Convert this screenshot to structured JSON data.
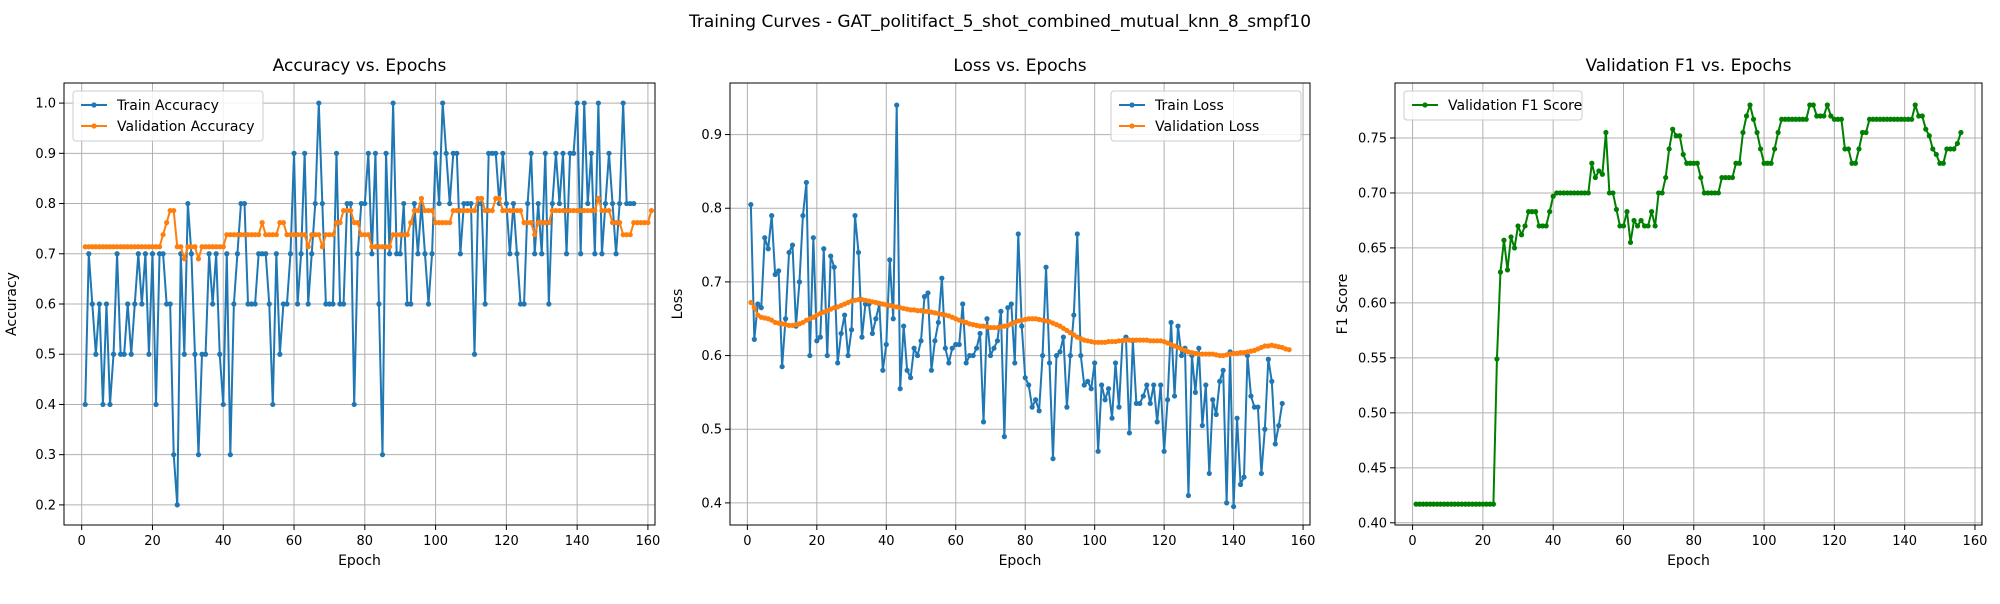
{
  "suptitle": "Training Curves - GAT_politifact_5_shot_combined_mutual_knn_8_smpf10",
  "chart_data": [
    {
      "type": "line",
      "title": "Accuracy vs. Epochs",
      "xlabel": "Epoch",
      "ylabel": "Accuracy",
      "xlim": [
        -5,
        162
      ],
      "ylim": [
        0.16,
        1.04
      ],
      "xticks": [
        0,
        20,
        40,
        60,
        80,
        100,
        120,
        140,
        160
      ],
      "yticks": [
        0.2,
        0.3,
        0.4,
        0.5,
        0.6,
        0.7,
        0.8,
        0.9,
        1.0
      ],
      "ytick_labels": [
        "0.2",
        "0.3",
        "0.4",
        "0.5",
        "0.6",
        "0.7",
        "0.8",
        "0.9",
        "1.0"
      ],
      "grid": true,
      "legend": "upper left",
      "series": [
        {
          "name": "Train Accuracy",
          "color": "#1f77b4",
          "values": [
            0.4,
            0.7,
            0.6,
            0.5,
            0.6,
            0.4,
            0.6,
            0.4,
            0.5,
            0.7,
            0.5,
            0.5,
            0.6,
            0.5,
            0.6,
            0.7,
            0.6,
            0.7,
            0.5,
            0.7,
            0.4,
            0.7,
            0.7,
            0.6,
            0.6,
            0.3,
            0.2,
            0.7,
            0.5,
            0.8,
            0.7,
            0.5,
            0.3,
            0.5,
            0.5,
            0.7,
            0.6,
            0.7,
            0.5,
            0.4,
            0.7,
            0.3,
            0.6,
            0.7,
            0.8,
            0.8,
            0.6,
            0.6,
            0.6,
            0.7,
            0.7,
            0.7,
            0.6,
            0.4,
            0.7,
            0.5,
            0.6,
            0.6,
            0.7,
            0.9,
            0.6,
            0.7,
            0.9,
            0.6,
            0.7,
            0.8,
            1.0,
            0.8,
            0.6,
            0.6,
            0.6,
            0.9,
            0.6,
            0.6,
            0.8,
            0.8,
            0.4,
            0.7,
            0.8,
            0.8,
            0.9,
            0.7,
            0.9,
            0.6,
            0.3,
            0.9,
            0.7,
            1.0,
            0.7,
            0.7,
            0.8,
            0.6,
            0.6,
            0.8,
            0.7,
            0.8,
            0.7,
            0.6,
            0.7,
            0.9,
            0.8,
            1.0,
            0.9,
            0.8,
            0.9,
            0.9,
            0.7,
            0.8,
            0.8,
            0.8,
            0.5,
            0.8,
            0.8,
            0.6,
            0.9,
            0.9,
            0.9,
            0.8,
            0.9,
            0.8,
            0.7,
            0.8,
            0.7,
            0.6,
            0.6,
            0.8,
            0.9,
            0.7,
            0.8,
            0.7,
            0.9,
            0.6,
            0.8,
            0.9,
            0.8,
            0.9,
            0.7,
            0.9,
            0.9,
            1.0,
            0.7,
            1.0,
            0.8,
            0.9,
            0.7,
            1.0,
            0.7,
            0.8,
            0.9,
            0.8,
            0.7,
            0.8,
            1.0,
            0.8,
            0.8,
            0.8
          ]
        },
        {
          "name": "Validation Accuracy",
          "color": "#ff7f0e",
          "values": [
            0.714,
            0.714,
            0.714,
            0.714,
            0.714,
            0.714,
            0.714,
            0.714,
            0.714,
            0.714,
            0.714,
            0.714,
            0.714,
            0.714,
            0.714,
            0.714,
            0.714,
            0.714,
            0.714,
            0.714,
            0.714,
            0.714,
            0.738,
            0.762,
            0.786,
            0.786,
            0.714,
            0.714,
            0.69,
            0.714,
            0.714,
            0.714,
            0.69,
            0.714,
            0.714,
            0.714,
            0.714,
            0.714,
            0.714,
            0.714,
            0.738,
            0.738,
            0.738,
            0.738,
            0.738,
            0.738,
            0.738,
            0.738,
            0.738,
            0.738,
            0.762,
            0.738,
            0.738,
            0.738,
            0.738,
            0.762,
            0.762,
            0.738,
            0.738,
            0.738,
            0.738,
            0.738,
            0.738,
            0.714,
            0.738,
            0.738,
            0.738,
            0.714,
            0.738,
            0.738,
            0.738,
            0.762,
            0.762,
            0.786,
            0.786,
            0.786,
            0.762,
            0.762,
            0.738,
            0.738,
            0.738,
            0.714,
            0.714,
            0.714,
            0.714,
            0.714,
            0.714,
            0.738,
            0.738,
            0.738,
            0.738,
            0.738,
            0.762,
            0.786,
            0.786,
            0.81,
            0.786,
            0.786,
            0.786,
            0.762,
            0.762,
            0.762,
            0.762,
            0.762,
            0.786,
            0.786,
            0.786,
            0.786,
            0.786,
            0.786,
            0.786,
            0.81,
            0.81,
            0.786,
            0.786,
            0.786,
            0.81,
            0.81,
            0.786,
            0.786,
            0.786,
            0.786,
            0.786,
            0.786,
            0.762,
            0.762,
            0.762,
            0.738,
            0.762,
            0.762,
            0.762,
            0.762,
            0.786,
            0.786,
            0.786,
            0.786,
            0.786,
            0.786,
            0.786,
            0.786,
            0.786,
            0.786,
            0.786,
            0.786,
            0.786,
            0.81,
            0.786,
            0.786,
            0.786,
            0.762,
            0.762,
            0.762,
            0.738,
            0.738,
            0.738,
            0.762,
            0.762,
            0.762,
            0.762,
            0.762,
            0.786
          ]
        }
      ]
    },
    {
      "type": "line",
      "title": "Loss vs. Epochs",
      "xlabel": "Epoch",
      "ylabel": "Loss",
      "xlim": [
        -5,
        162
      ],
      "ylim": [
        0.37,
        0.97
      ],
      "xticks": [
        0,
        20,
        40,
        60,
        80,
        100,
        120,
        140,
        160
      ],
      "yticks": [
        0.4,
        0.5,
        0.6,
        0.7,
        0.8,
        0.9
      ],
      "ytick_labels": [
        "0.4",
        "0.5",
        "0.6",
        "0.7",
        "0.8",
        "0.9"
      ],
      "grid": true,
      "legend": "upper right",
      "series": [
        {
          "name": "Train Loss",
          "color": "#1f77b4",
          "values": [
            0.805,
            0.622,
            0.67,
            0.665,
            0.76,
            0.745,
            0.79,
            0.71,
            0.715,
            0.585,
            0.65,
            0.74,
            0.75,
            0.64,
            0.7,
            0.79,
            0.835,
            0.6,
            0.76,
            0.62,
            0.625,
            0.745,
            0.6,
            0.735,
            0.72,
            0.59,
            0.63,
            0.655,
            0.6,
            0.635,
            0.79,
            0.74,
            0.625,
            0.67,
            0.67,
            0.63,
            0.65,
            0.67,
            0.58,
            0.615,
            0.73,
            0.65,
            0.94,
            0.555,
            0.64,
            0.58,
            0.57,
            0.61,
            0.6,
            0.62,
            0.68,
            0.685,
            0.58,
            0.62,
            0.645,
            0.705,
            0.61,
            0.59,
            0.61,
            0.615,
            0.615,
            0.67,
            0.59,
            0.6,
            0.6,
            0.61,
            0.63,
            0.51,
            0.65,
            0.6,
            0.61,
            0.62,
            0.66,
            0.49,
            0.665,
            0.67,
            0.59,
            0.765,
            0.64,
            0.57,
            0.56,
            0.53,
            0.54,
            0.525,
            0.6,
            0.72,
            0.59,
            0.46,
            0.6,
            0.605,
            0.625,
            0.53,
            0.6,
            0.655,
            0.765,
            0.6,
            0.56,
            0.565,
            0.555,
            0.59,
            0.47,
            0.56,
            0.54,
            0.555,
            0.515,
            0.59,
            0.53,
            0.62,
            0.625,
            0.495,
            0.62,
            0.535,
            0.535,
            0.545,
            0.56,
            0.535,
            0.56,
            0.51,
            0.56,
            0.47,
            0.54,
            0.645,
            0.545,
            0.64,
            0.6,
            0.61,
            0.41,
            0.6,
            0.55,
            0.61,
            0.505,
            0.56,
            0.44,
            0.54,
            0.52,
            0.565,
            0.58,
            0.4,
            0.605,
            0.395,
            0.515,
            0.425,
            0.435,
            0.6,
            0.545,
            0.53,
            0.53,
            0.44,
            0.5,
            0.595,
            0.565,
            0.48,
            0.505,
            0.535
          ]
        },
        {
          "name": "Validation Loss",
          "color": "#ff7f0e",
          "values": [
            0.672,
            0.665,
            0.655,
            0.652,
            0.651,
            0.65,
            0.648,
            0.645,
            0.644,
            0.643,
            0.642,
            0.641,
            0.641,
            0.642,
            0.643,
            0.645,
            0.648,
            0.65,
            0.652,
            0.655,
            0.657,
            0.659,
            0.661,
            0.663,
            0.665,
            0.666,
            0.668,
            0.67,
            0.672,
            0.674,
            0.675,
            0.676,
            0.676,
            0.675,
            0.674,
            0.673,
            0.672,
            0.671,
            0.67,
            0.669,
            0.668,
            0.667,
            0.666,
            0.665,
            0.664,
            0.663,
            0.662,
            0.662,
            0.661,
            0.661,
            0.66,
            0.66,
            0.659,
            0.658,
            0.657,
            0.656,
            0.655,
            0.654,
            0.652,
            0.65,
            0.648,
            0.646,
            0.645,
            0.643,
            0.642,
            0.641,
            0.64,
            0.64,
            0.639,
            0.638,
            0.638,
            0.638,
            0.639,
            0.64,
            0.641,
            0.643,
            0.645,
            0.647,
            0.648,
            0.649,
            0.65,
            0.65,
            0.65,
            0.649,
            0.648,
            0.647,
            0.646,
            0.644,
            0.642,
            0.64,
            0.637,
            0.634,
            0.631,
            0.628,
            0.625,
            0.623,
            0.621,
            0.62,
            0.619,
            0.618,
            0.618,
            0.618,
            0.618,
            0.619,
            0.619,
            0.619,
            0.62,
            0.62,
            0.621,
            0.621,
            0.621,
            0.621,
            0.621,
            0.621,
            0.621,
            0.62,
            0.62,
            0.62,
            0.62,
            0.619,
            0.617,
            0.615,
            0.613,
            0.611,
            0.609,
            0.607,
            0.605,
            0.604,
            0.603,
            0.602,
            0.602,
            0.602,
            0.602,
            0.602,
            0.601,
            0.6,
            0.6,
            0.601,
            0.602,
            0.603,
            0.603,
            0.604,
            0.604,
            0.605,
            0.606,
            0.607,
            0.609,
            0.611,
            0.613,
            0.613,
            0.614,
            0.613,
            0.612,
            0.611,
            0.609,
            0.608
          ]
        }
      ]
    },
    {
      "type": "line",
      "title": "Validation F1 vs. Epochs",
      "xlabel": "Epoch",
      "ylabel": "F1 Score",
      "xlim": [
        -5,
        162
      ],
      "ylim": [
        0.398,
        0.8
      ],
      "xticks": [
        0,
        20,
        40,
        60,
        80,
        100,
        120,
        140,
        160
      ],
      "yticks": [
        0.4,
        0.45,
        0.5,
        0.55,
        0.6,
        0.65,
        0.7,
        0.75
      ],
      "ytick_labels": [
        "0.40",
        "0.45",
        "0.50",
        "0.55",
        "0.60",
        "0.65",
        "0.70",
        "0.75"
      ],
      "grid": true,
      "legend": "upper left",
      "series": [
        {
          "name": "Validation F1 Score",
          "color": "#008000",
          "values": [
            0.417,
            0.417,
            0.417,
            0.417,
            0.417,
            0.417,
            0.417,
            0.417,
            0.417,
            0.417,
            0.417,
            0.417,
            0.417,
            0.417,
            0.417,
            0.417,
            0.417,
            0.417,
            0.417,
            0.417,
            0.417,
            0.417,
            0.417,
            0.549,
            0.628,
            0.657,
            0.63,
            0.66,
            0.65,
            0.67,
            0.662,
            0.67,
            0.683,
            0.683,
            0.683,
            0.67,
            0.67,
            0.67,
            0.683,
            0.697,
            0.7,
            0.7,
            0.7,
            0.7,
            0.7,
            0.7,
            0.7,
            0.7,
            0.7,
            0.7,
            0.727,
            0.714,
            0.72,
            0.717,
            0.755,
            0.7,
            0.7,
            0.685,
            0.67,
            0.67,
            0.683,
            0.655,
            0.675,
            0.67,
            0.675,
            0.67,
            0.67,
            0.683,
            0.67,
            0.7,
            0.7,
            0.714,
            0.74,
            0.758,
            0.752,
            0.752,
            0.735,
            0.727,
            0.727,
            0.727,
            0.727,
            0.714,
            0.7,
            0.7,
            0.7,
            0.7,
            0.7,
            0.714,
            0.714,
            0.714,
            0.714,
            0.727,
            0.727,
            0.755,
            0.77,
            0.78,
            0.767,
            0.755,
            0.74,
            0.727,
            0.727,
            0.727,
            0.74,
            0.755,
            0.767,
            0.767,
            0.767,
            0.767,
            0.767,
            0.767,
            0.767,
            0.767,
            0.78,
            0.78,
            0.77,
            0.77,
            0.77,
            0.78,
            0.77,
            0.767,
            0.767,
            0.767,
            0.74,
            0.74,
            0.727,
            0.727,
            0.74,
            0.755,
            0.755,
            0.767,
            0.767,
            0.767,
            0.767,
            0.767,
            0.767,
            0.767,
            0.767,
            0.767,
            0.767,
            0.767,
            0.767,
            0.767,
            0.78,
            0.77,
            0.77,
            0.758,
            0.752,
            0.74,
            0.735,
            0.727,
            0.727,
            0.74,
            0.74,
            0.74,
            0.745,
            0.755
          ]
        }
      ]
    }
  ]
}
